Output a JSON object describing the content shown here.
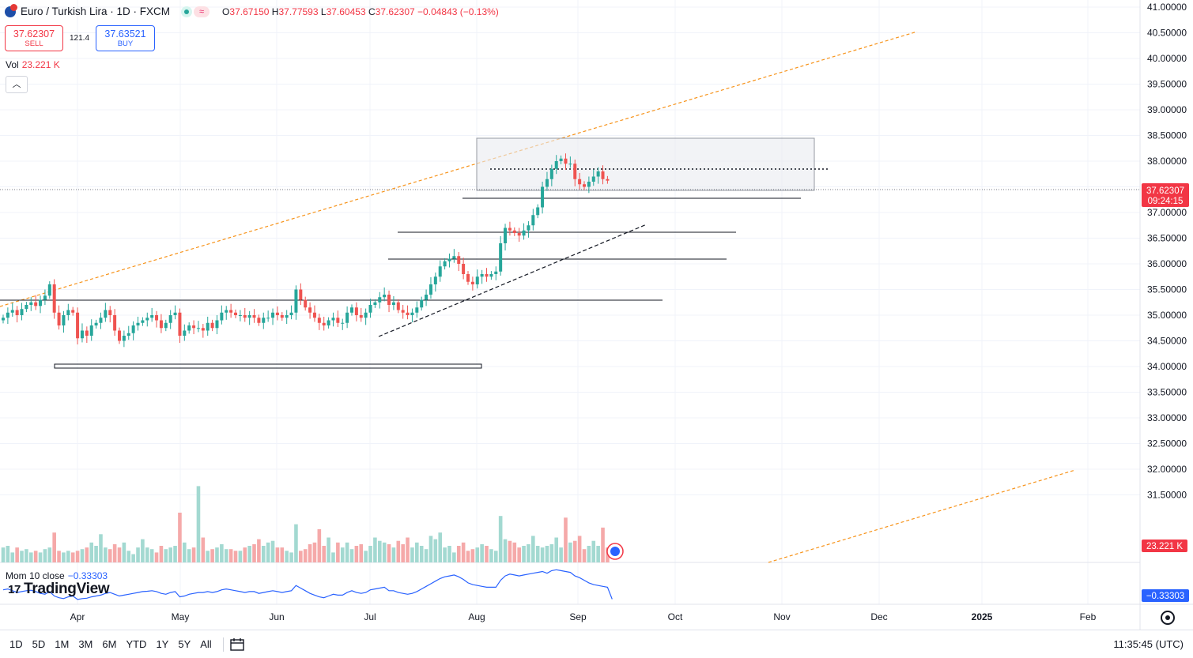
{
  "header": {
    "title": "Euro / Turkish Lira · 1D · FXCM",
    "ohlc": [
      {
        "k": "O",
        "v": "37.67150"
      },
      {
        "k": "H",
        "v": "37.77593"
      },
      {
        "k": "L",
        "v": "37.60453"
      },
      {
        "k": "C",
        "v": "37.62307"
      },
      {
        "k": "",
        "v": "−0.04843 (−0.13%)"
      }
    ]
  },
  "trade": {
    "sell_price": "37.62307",
    "sell_label": "SELL",
    "spread": "121.4",
    "buy_price": "37.63521",
    "buy_label": "BUY"
  },
  "volume": {
    "label": "Vol",
    "value": "23.221 K",
    "badge": "23.221 K"
  },
  "momentum": {
    "label": "Mom 10 close",
    "value": "−0.33303",
    "badge": "−0.33303"
  },
  "logo": {
    "text": "TradingView"
  },
  "price_badge": {
    "price": "37.62307",
    "countdown": "09:24:15"
  },
  "bottom": {
    "ranges": [
      "1D",
      "5D",
      "1M",
      "3M",
      "6M",
      "YTD",
      "1Y",
      "5Y",
      "All"
    ],
    "time": "11:35:45 (UTC)"
  },
  "colors": {
    "up": "#26a69a",
    "down": "#ef5350",
    "momentum": "#2962ff",
    "trend": "#f7931a"
  },
  "chart_data": {
    "type": "candlestick",
    "title": "Euro / Turkish Lira · 1D · FXCM",
    "y_ticks": [
      "41.00000",
      "40.50000",
      "40.00000",
      "39.50000",
      "39.00000",
      "38.50000",
      "38.00000",
      "37.50000",
      "37.00000",
      "36.50000",
      "36.00000",
      "35.50000",
      "35.00000",
      "34.50000",
      "34.00000",
      "33.50000",
      "33.00000",
      "32.50000",
      "32.00000",
      "31.50000"
    ],
    "x_ticks": [
      "Apr",
      "May",
      "Jun",
      "Jul",
      "Aug",
      "Sep",
      "Oct",
      "Nov",
      "Dec",
      "2025",
      "Feb"
    ],
    "ylim": [
      31.0,
      41.0
    ],
    "closes": [
      34.95,
      35.05,
      35.1,
      35.0,
      35.12,
      35.2,
      35.25,
      35.18,
      35.3,
      35.38,
      35.6,
      35.05,
      34.8,
      35.0,
      35.1,
      35.05,
      34.55,
      34.7,
      34.6,
      34.8,
      34.85,
      34.95,
      35.1,
      35.0,
      34.7,
      34.5,
      34.6,
      34.65,
      34.8,
      34.85,
      34.9,
      34.95,
      35.0,
      34.9,
      34.75,
      34.85,
      35.0,
      35.05,
      34.6,
      34.7,
      34.8,
      34.75,
      34.75,
      34.7,
      34.85,
      34.75,
      34.9,
      35.05,
      35.1,
      35.05,
      35.0,
      35.0,
      34.95,
      35.0,
      34.95,
      34.85,
      34.95,
      34.95,
      35.05,
      35.0,
      34.95,
      35.0,
      35.05,
      35.5,
      35.3,
      35.15,
      35.05,
      34.95,
      34.85,
      34.8,
      34.9,
      34.95,
      34.85,
      34.85,
      35.05,
      35.15,
      35.0,
      34.95,
      35.05,
      35.2,
      35.25,
      35.35,
      35.4,
      35.2,
      35.25,
      35.1,
      35.05,
      35.0,
      35.05,
      35.15,
      35.3,
      35.4,
      35.6,
      35.75,
      35.95,
      36.05,
      36.1,
      36.15,
      36.0,
      35.8,
      35.65,
      35.6,
      35.75,
      35.8,
      35.75,
      35.8,
      35.85,
      36.4,
      36.7,
      36.65,
      36.6,
      36.55,
      36.65,
      36.75,
      36.95,
      37.1,
      37.5,
      37.65,
      37.85,
      38.0,
      38.05,
      37.95,
      37.95,
      37.65,
      37.55,
      37.5,
      37.6,
      37.7,
      37.8,
      37.65,
      37.62
    ],
    "volumes": [
      4.9,
      5.0,
      4.6,
      4.9,
      4.7,
      4.8,
      4.6,
      4.7,
      4.6,
      4.8,
      4.9,
      5.8,
      4.7,
      4.6,
      4.7,
      4.6,
      4.7,
      4.8,
      4.9,
      5.2,
      5.0,
      5.7,
      4.9,
      4.8,
      5.1,
      4.9,
      5.2,
      4.7,
      4.5,
      4.9,
      5.4,
      4.9,
      4.8,
      4.6,
      5.0,
      4.8,
      4.9,
      5.0,
      7.0,
      5.2,
      4.8,
      4.9,
      8.6,
      5.5,
      4.7,
      4.8,
      4.9,
      5.1,
      4.8,
      4.8,
      4.7,
      4.7,
      4.9,
      5.0,
      5.1,
      5.4,
      5.0,
      5.2,
      5.3,
      4.9,
      4.9,
      4.7,
      4.6,
      6.3,
      4.7,
      4.8,
      5.1,
      5.2,
      6.0,
      5.0,
      5.5,
      4.6,
      5.2,
      4.9,
      5.2,
      4.8,
      5.0,
      5.1,
      4.7,
      5.0,
      5.5,
      5.3,
      5.2,
      5.1,
      4.9,
      5.3,
      5.1,
      5.5,
      4.9,
      5.2,
      5.0,
      4.8,
      5.6,
      5.4,
      5.8,
      4.9,
      5.0,
      4.6,
      5.0,
      5.2,
      4.7,
      4.8,
      4.9,
      5.1,
      5.0,
      4.8,
      4.7,
      6.8,
      5.4,
      5.3,
      5.2,
      4.9,
      5.0,
      5.1,
      5.6,
      5.0,
      4.9,
      5.0,
      5.1,
      5.5,
      4.9,
      6.7,
      5.2,
      5.3,
      5.6,
      4.8,
      5.0,
      5.3,
      5.0,
      6.1,
      4.9
    ],
    "momentum_range": [
      -0.4,
      1.5
    ],
    "momentum": [
      0.2,
      0.25,
      0.15,
      0.05,
      0.1,
      0.15,
      0.18,
      0.1,
      0.0,
      -0.05,
      0.1,
      -0.15,
      -0.25,
      -0.3,
      -0.2,
      -0.15,
      -0.35,
      -0.3,
      -0.28,
      -0.2,
      -0.15,
      -0.1,
      0.0,
      0.05,
      -0.05,
      -0.15,
      -0.1,
      -0.05,
      0.0,
      0.05,
      0.1,
      0.12,
      0.15,
      0.1,
      0.0,
      -0.05,
      0.05,
      0.1,
      -0.2,
      -0.15,
      -0.05,
      0.0,
      0.05,
      0.05,
      0.1,
      0.05,
      0.1,
      0.2,
      0.25,
      0.2,
      0.15,
      0.1,
      0.05,
      0.1,
      0.1,
      0.0,
      0.05,
      0.1,
      0.15,
      0.1,
      0.05,
      0.1,
      0.15,
      0.45,
      0.3,
      0.15,
      0.0,
      -0.1,
      -0.2,
      -0.25,
      -0.15,
      -0.05,
      -0.1,
      -0.1,
      0.05,
      0.15,
      0.05,
      0.0,
      0.05,
      0.2,
      0.25,
      0.3,
      0.35,
      0.15,
      0.15,
      0.05,
      0.0,
      -0.05,
      0.0,
      0.1,
      0.25,
      0.4,
      0.55,
      0.7,
      0.85,
      0.95,
      1.0,
      1.05,
      0.95,
      0.8,
      0.6,
      0.5,
      0.45,
      0.4,
      0.35,
      0.35,
      0.35,
      0.75,
      1.0,
      1.1,
      1.05,
      1.0,
      1.05,
      1.1,
      1.15,
      1.2,
      1.25,
      1.15,
      1.3,
      1.35,
      1.3,
      1.25,
      1.2,
      1.0,
      0.9,
      0.75,
      0.6,
      0.5,
      0.45,
      0.4,
      0.35,
      -0.33
    ]
  }
}
